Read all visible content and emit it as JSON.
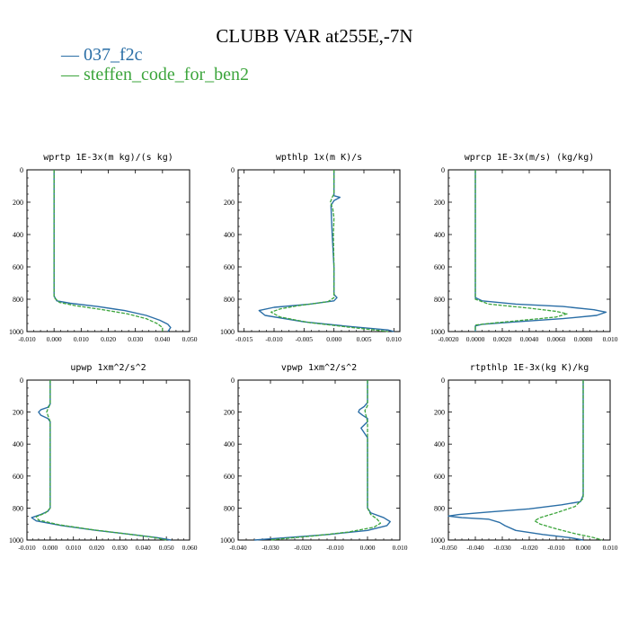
{
  "title": "CLUBB VAR at255E,-7N",
  "legend": [
    {
      "label": "— 037_f2c",
      "color": "#2a6ea6"
    },
    {
      "label": "— steffen_code_for_ben2",
      "color": "#3ca53c"
    }
  ],
  "colors": {
    "series_a": "#2a6ea6",
    "series_b": "#3ca53c",
    "axis": "#000000"
  },
  "chart_data": [
    {
      "type": "line",
      "title": "wprtp  1E-3x(m kg)/(s kg)",
      "xlim": [
        -0.01,
        0.05
      ],
      "ylim": [
        1000,
        0
      ],
      "xticks": [
        -0.01,
        0.0,
        0.01,
        0.02,
        0.03,
        0.04,
        0.05
      ],
      "xtick_labels": [
        "-0.010",
        "0.000",
        "0.010",
        "0.020",
        "0.030",
        "0.040",
        "0.050"
      ],
      "yticks": [
        0,
        200,
        400,
        600,
        800,
        1000
      ],
      "ytick_labels": [
        "0",
        "200",
        "400",
        "600",
        "800",
        "1000"
      ],
      "series": [
        {
          "name": "037_f2c",
          "points": [
            [
              0.0,
              0
            ],
            [
              0.0,
              200
            ],
            [
              0.0,
              400
            ],
            [
              0.0,
              600
            ],
            [
              0.0,
              780
            ],
            [
              0.001,
              810
            ],
            [
              0.006,
              825
            ],
            [
              0.016,
              845
            ],
            [
              0.026,
              870
            ],
            [
              0.034,
              900
            ],
            [
              0.039,
              930
            ],
            [
              0.042,
              955
            ],
            [
              0.043,
              975
            ],
            [
              0.042,
              1000
            ]
          ]
        },
        {
          "name": "steffen_code_for_ben2",
          "points": [
            [
              0.0,
              0
            ],
            [
              0.0,
              200
            ],
            [
              0.0,
              400
            ],
            [
              0.0,
              600
            ],
            [
              0.0,
              790
            ],
            [
              0.002,
              820
            ],
            [
              0.008,
              840
            ],
            [
              0.018,
              865
            ],
            [
              0.027,
              890
            ],
            [
              0.034,
              920
            ],
            [
              0.038,
              950
            ],
            [
              0.04,
              975
            ],
            [
              0.04,
              1000
            ]
          ]
        }
      ]
    },
    {
      "type": "line",
      "title": "wpthlp  1x(m K)/s",
      "xlim": [
        -0.016,
        0.011
      ],
      "ylim": [
        1000,
        0
      ],
      "xticks": [
        -0.015,
        -0.01,
        -0.005,
        0.0,
        0.005,
        0.01
      ],
      "xtick_labels": [
        "-0.015",
        "-0.010",
        "-0.005",
        "0.000",
        "0.005",
        "0.010"
      ],
      "yticks": [
        0,
        200,
        400,
        600,
        800,
        1000
      ],
      "ytick_labels": [
        "0",
        "200",
        "400",
        "600",
        "800",
        "1000"
      ],
      "series": [
        {
          "name": "037_f2c",
          "points": [
            [
              0.0,
              0
            ],
            [
              0.0,
              140
            ],
            [
              0.0,
              160
            ],
            [
              0.001,
              170
            ],
            [
              0.0,
              190
            ],
            [
              -0.0005,
              220
            ],
            [
              -0.0003,
              400
            ],
            [
              0.0,
              600
            ],
            [
              0.0,
              770
            ],
            [
              0.0005,
              790
            ],
            [
              0.0,
              810
            ],
            [
              -0.004,
              830
            ],
            [
              -0.01,
              850
            ],
            [
              -0.0125,
              870
            ],
            [
              -0.0115,
              900
            ],
            [
              -0.005,
              940
            ],
            [
              0.003,
              970
            ],
            [
              0.009,
              990
            ],
            [
              0.01,
              1000
            ]
          ]
        },
        {
          "name": "steffen_code_for_ben2",
          "points": [
            [
              0.0,
              0
            ],
            [
              0.0,
              150
            ],
            [
              -0.0003,
              170
            ],
            [
              -0.0006,
              200
            ],
            [
              -0.0002,
              240
            ],
            [
              0.0,
              300
            ],
            [
              -0.0001,
              400
            ],
            [
              0.0,
              600
            ],
            [
              0.0,
              790
            ],
            [
              -0.001,
              815
            ],
            [
              -0.006,
              840
            ],
            [
              -0.009,
              860
            ],
            [
              -0.0105,
              880
            ],
            [
              -0.009,
              910
            ],
            [
              -0.004,
              945
            ],
            [
              0.003,
              975
            ],
            [
              0.008,
              995
            ],
            [
              0.009,
              1000
            ]
          ]
        }
      ]
    },
    {
      "type": "line",
      "title": "wprcp  1E-3x(m/s) (kg/kg)",
      "xlim": [
        -0.002,
        0.01
      ],
      "ylim": [
        1000,
        0
      ],
      "xticks": [
        -0.002,
        0.0,
        0.002,
        0.004,
        0.006,
        0.008,
        0.01
      ],
      "xtick_labels": [
        "-0.0020",
        "0.0000",
        "0.0020",
        "0.0040",
        "0.0060",
        "0.0080",
        "0.010"
      ],
      "yticks": [
        0,
        200,
        400,
        600,
        800,
        1000
      ],
      "ytick_labels": [
        "0",
        "200",
        "400",
        "600",
        "800",
        "1000"
      ],
      "series": [
        {
          "name": "037_f2c",
          "points": [
            [
              0.0,
              0
            ],
            [
              0.0,
              400
            ],
            [
              0.0,
              790
            ],
            [
              0.0005,
              810
            ],
            [
              0.003,
              830
            ],
            [
              0.0065,
              845
            ],
            [
              0.0088,
              865
            ],
            [
              0.0097,
              880
            ],
            [
              0.009,
              900
            ],
            [
              0.0065,
              920
            ],
            [
              0.003,
              940
            ],
            [
              0.0005,
              955
            ],
            [
              0.0,
              965
            ],
            [
              0.0,
              1000
            ]
          ]
        },
        {
          "name": "steffen_code_for_ben2",
          "points": [
            [
              0.0,
              0
            ],
            [
              0.0,
              400
            ],
            [
              0.0,
              800
            ],
            [
              0.001,
              830
            ],
            [
              0.004,
              855
            ],
            [
              0.006,
              875
            ],
            [
              0.0068,
              890
            ],
            [
              0.006,
              910
            ],
            [
              0.0035,
              930
            ],
            [
              0.001,
              950
            ],
            [
              0.0,
              960
            ],
            [
              0.0,
              1000
            ]
          ]
        }
      ]
    },
    {
      "type": "line",
      "title": "upwp   1xm^2/s^2",
      "xlim": [
        -0.01,
        0.06
      ],
      "ylim": [
        1000,
        0
      ],
      "xticks": [
        -0.01,
        0.0,
        0.01,
        0.02,
        0.03,
        0.04,
        0.05,
        0.06
      ],
      "xtick_labels": [
        "-0.010",
        "0.000",
        "0.010",
        "0.020",
        "0.030",
        "0.040",
        "0.050",
        "0.060"
      ],
      "yticks": [
        0,
        200,
        400,
        600,
        800,
        1000
      ],
      "ytick_labels": [
        "0",
        "200",
        "400",
        "600",
        "800",
        "1000"
      ],
      "series": [
        {
          "name": "037_f2c",
          "points": [
            [
              0.0,
              0
            ],
            [
              0.0,
              150
            ],
            [
              -0.001,
              170
            ],
            [
              -0.004,
              185
            ],
            [
              -0.005,
              200
            ],
            [
              -0.004,
              220
            ],
            [
              -0.001,
              240
            ],
            [
              0.0,
              260
            ],
            [
              0.0,
              400
            ],
            [
              0.0,
              600
            ],
            [
              0.0,
              800
            ],
            [
              -0.001,
              820
            ],
            [
              -0.004,
              840
            ],
            [
              -0.008,
              860
            ],
            [
              -0.006,
              880
            ],
            [
              0.005,
              910
            ],
            [
              0.02,
              940
            ],
            [
              0.035,
              965
            ],
            [
              0.046,
              985
            ],
            [
              0.052,
              1000
            ]
          ]
        },
        {
          "name": "steffen_code_for_ben2",
          "points": [
            [
              0.0,
              0
            ],
            [
              0.0,
              150
            ],
            [
              -0.001,
              180
            ],
            [
              -0.0015,
              200
            ],
            [
              -0.001,
              220
            ],
            [
              0.0,
              260
            ],
            [
              0.0,
              400
            ],
            [
              0.0,
              600
            ],
            [
              0.0,
              800
            ],
            [
              -0.002,
              830
            ],
            [
              -0.006,
              855
            ],
            [
              -0.005,
              875
            ],
            [
              0.004,
              905
            ],
            [
              0.018,
              935
            ],
            [
              0.032,
              960
            ],
            [
              0.044,
              982
            ],
            [
              0.05,
              1000
            ]
          ]
        }
      ]
    },
    {
      "type": "line",
      "title": "vpwp   1xm^2/s^2",
      "xlim": [
        -0.04,
        0.01
      ],
      "ylim": [
        1000,
        0
      ],
      "xticks": [
        -0.04,
        -0.03,
        -0.02,
        -0.01,
        0.0,
        0.01
      ],
      "xtick_labels": [
        "-0.040",
        "-0.030",
        "-0.020",
        "-0.010",
        "0.000",
        "0.010"
      ],
      "yticks": [
        0,
        200,
        400,
        600,
        800,
        1000
      ],
      "ytick_labels": [
        "0",
        "200",
        "400",
        "600",
        "800",
        "1000"
      ],
      "series": [
        {
          "name": "037_f2c",
          "points": [
            [
              0.0,
              0
            ],
            [
              0.0,
              140
            ],
            [
              -0.001,
              165
            ],
            [
              -0.0025,
              185
            ],
            [
              -0.0028,
              200
            ],
            [
              -0.0015,
              220
            ],
            [
              0.0,
              240
            ],
            [
              0.0,
              260
            ],
            [
              -0.001,
              280
            ],
            [
              -0.002,
              300
            ],
            [
              -0.001,
              330
            ],
            [
              0.0,
              360
            ],
            [
              0.0,
              500
            ],
            [
              0.0,
              700
            ],
            [
              0.0,
              800
            ],
            [
              0.001,
              830
            ],
            [
              0.005,
              860
            ],
            [
              0.007,
              885
            ],
            [
              0.006,
              910
            ],
            [
              0.0,
              940
            ],
            [
              -0.012,
              965
            ],
            [
              -0.025,
              985
            ],
            [
              -0.035,
              1000
            ]
          ]
        },
        {
          "name": "steffen_code_for_ben2",
          "points": [
            [
              0.0,
              0
            ],
            [
              0.0,
              160
            ],
            [
              -0.0008,
              190
            ],
            [
              -0.0005,
              220
            ],
            [
              0.0,
              260
            ],
            [
              0.0,
              500
            ],
            [
              0.0,
              700
            ],
            [
              0.0,
              800
            ],
            [
              0.001,
              840
            ],
            [
              0.003,
              870
            ],
            [
              0.004,
              895
            ],
            [
              0.002,
              920
            ],
            [
              -0.006,
              950
            ],
            [
              -0.017,
              975
            ],
            [
              -0.028,
              995
            ],
            [
              -0.03,
              1000
            ]
          ]
        }
      ]
    },
    {
      "type": "line",
      "title": "rtpthlp  1E-3x(kg K)/kg",
      "xlim": [
        -0.05,
        0.01
      ],
      "ylim": [
        1000,
        0
      ],
      "xticks": [
        -0.05,
        -0.04,
        -0.03,
        -0.02,
        -0.01,
        0.0,
        0.01
      ],
      "xtick_labels": [
        "-0.050",
        "-0.040",
        "-0.030",
        "-0.020",
        "-0.010",
        "0.000",
        "0.010"
      ],
      "yticks": [
        0,
        200,
        400,
        600,
        800,
        1000
      ],
      "ytick_labels": [
        "0",
        "200",
        "400",
        "600",
        "800",
        "1000"
      ],
      "series": [
        {
          "name": "037_f2c",
          "points": [
            [
              0.0,
              0
            ],
            [
              0.0,
              400
            ],
            [
              0.0,
              720
            ],
            [
              -0.001,
              760
            ],
            [
              -0.008,
              780
            ],
            [
              -0.02,
              805
            ],
            [
              -0.035,
              825
            ],
            [
              -0.046,
              840
            ],
            [
              -0.05,
              850
            ],
            [
              -0.045,
              860
            ],
            [
              -0.035,
              870
            ],
            [
              -0.031,
              890
            ],
            [
              -0.029,
              910
            ],
            [
              -0.025,
              940
            ],
            [
              -0.015,
              965
            ],
            [
              -0.005,
              985
            ],
            [
              0.0,
              1000
            ]
          ]
        },
        {
          "name": "steffen_code_for_ben2",
          "points": [
            [
              0.0,
              0
            ],
            [
              0.0,
              400
            ],
            [
              0.0,
              740
            ],
            [
              -0.003,
              790
            ],
            [
              -0.01,
              830
            ],
            [
              -0.016,
              860
            ],
            [
              -0.018,
              880
            ],
            [
              -0.016,
              900
            ],
            [
              -0.01,
              930
            ],
            [
              -0.003,
              960
            ],
            [
              0.004,
              985
            ],
            [
              0.007,
              1000
            ]
          ]
        }
      ]
    }
  ]
}
